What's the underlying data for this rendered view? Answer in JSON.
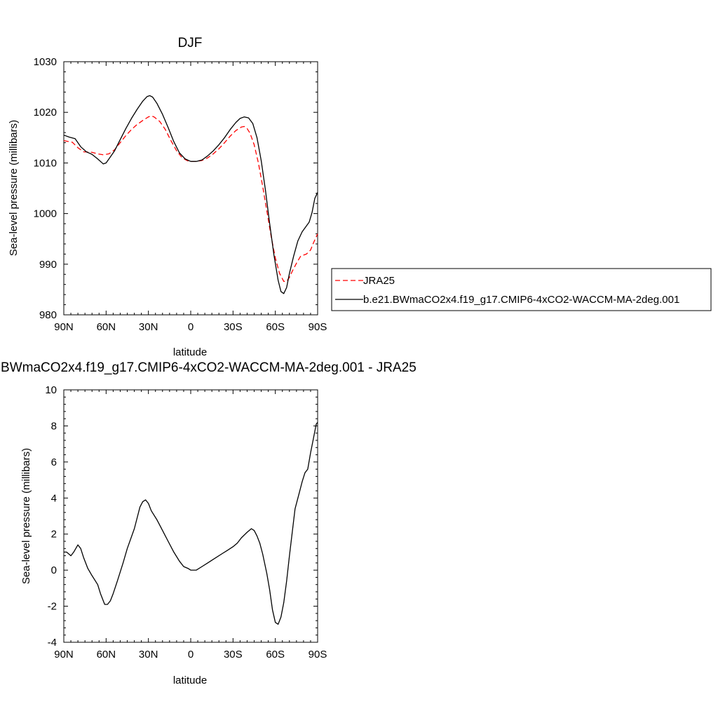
{
  "colors": {
    "model": "#000000",
    "obs": "#ff0000"
  },
  "chart_data": [
    {
      "type": "line",
      "title": "DJF",
      "xlabel": "latitude",
      "ylabel": "Sea-level pressure (millibars)",
      "xlim": [
        90,
        -90
      ],
      "ylim": [
        980,
        1030
      ],
      "xticks": [
        90,
        60,
        30,
        0,
        -30,
        -60,
        -90
      ],
      "xtick_labels": [
        "90N",
        "60N",
        "30N",
        "0",
        "30S",
        "60S",
        "90S"
      ],
      "yticks": [
        980,
        990,
        1000,
        1010,
        1020,
        1030
      ],
      "ytick_labels": [
        "980",
        "990",
        "1000",
        "1010",
        "1020",
        "1030"
      ],
      "legend": {
        "placement": "right"
      },
      "series": [
        {
          "name": "JRA25",
          "style": "dashed",
          "color": "#ff0000",
          "points": [
            [
              90,
              1014.4
            ],
            [
              86,
              1014.2
            ],
            [
              84,
              1014.1
            ],
            [
              80,
              1013.0
            ],
            [
              76,
              1012.2
            ],
            [
              70,
              1012.1
            ],
            [
              66,
              1011.8
            ],
            [
              62,
              1011.6
            ],
            [
              58,
              1011.8
            ],
            [
              54,
              1012.6
            ],
            [
              50,
              1014.0
            ],
            [
              46,
              1015.4
            ],
            [
              42,
              1016.6
            ],
            [
              38,
              1017.6
            ],
            [
              34,
              1018.4
            ],
            [
              30,
              1019.1
            ],
            [
              28,
              1019.3
            ],
            [
              26,
              1019.1
            ],
            [
              22,
              1018.2
            ],
            [
              18,
              1016.6
            ],
            [
              14,
              1014.4
            ],
            [
              10,
              1012.4
            ],
            [
              6,
              1011.0
            ],
            [
              2,
              1010.4
            ],
            [
              0,
              1010.3
            ],
            [
              -4,
              1010.3
            ],
            [
              -8,
              1010.5
            ],
            [
              -12,
              1011.0
            ],
            [
              -16,
              1011.8
            ],
            [
              -20,
              1012.8
            ],
            [
              -24,
              1014.0
            ],
            [
              -28,
              1015.3
            ],
            [
              -32,
              1016.4
            ],
            [
              -36,
              1017.1
            ],
            [
              -38,
              1017.2
            ],
            [
              -40,
              1016.8
            ],
            [
              -42,
              1015.9
            ],
            [
              -45,
              1013.6
            ],
            [
              -48,
              1010.0
            ],
            [
              -51,
              1005.4
            ],
            [
              -54,
              1000.5
            ],
            [
              -57,
              995.6
            ],
            [
              -60,
              991.2
            ],
            [
              -63,
              988.2
            ],
            [
              -66,
              986.6
            ],
            [
              -68,
              986.6
            ],
            [
              -70,
              987.4
            ],
            [
              -72,
              988.6
            ],
            [
              -75,
              990.2
            ],
            [
              -78,
              991.6
            ],
            [
              -82,
              992.0
            ],
            [
              -85,
              992.8
            ],
            [
              -87,
              994.2
            ],
            [
              -90,
              996.0
            ]
          ]
        },
        {
          "name": "b.e21.BWmaCO2x4.f19_g17.CMIP6-4xCO2-WACCM-MA-2deg.001",
          "style": "solid",
          "color": "#000000",
          "points": [
            [
              90,
              1015.5
            ],
            [
              86,
              1015.1
            ],
            [
              82,
              1014.8
            ],
            [
              78,
              1013.2
            ],
            [
              74,
              1012.2
            ],
            [
              70,
              1011.7
            ],
            [
              66,
              1010.8
            ],
            [
              62,
              1009.8
            ],
            [
              60,
              1010.0
            ],
            [
              58,
              1010.8
            ],
            [
              54,
              1012.4
            ],
            [
              50,
              1014.6
            ],
            [
              46,
              1016.8
            ],
            [
              42,
              1018.8
            ],
            [
              38,
              1020.6
            ],
            [
              34,
              1022.2
            ],
            [
              31,
              1023.1
            ],
            [
              29,
              1023.3
            ],
            [
              27,
              1023.0
            ],
            [
              24,
              1021.8
            ],
            [
              20,
              1019.6
            ],
            [
              16,
              1017.0
            ],
            [
              12,
              1014.2
            ],
            [
              8,
              1012.0
            ],
            [
              4,
              1010.8
            ],
            [
              0,
              1010.3
            ],
            [
              -4,
              1010.3
            ],
            [
              -8,
              1010.6
            ],
            [
              -12,
              1011.4
            ],
            [
              -16,
              1012.4
            ],
            [
              -20,
              1013.6
            ],
            [
              -24,
              1015.0
            ],
            [
              -28,
              1016.6
            ],
            [
              -32,
              1018.0
            ],
            [
              -35,
              1018.8
            ],
            [
              -38,
              1019.1
            ],
            [
              -41,
              1018.9
            ],
            [
              -44,
              1017.8
            ],
            [
              -47,
              1015.0
            ],
            [
              -50,
              1010.4
            ],
            [
              -53,
              1004.6
            ],
            [
              -56,
              998.0
            ],
            [
              -59,
              991.8
            ],
            [
              -62,
              986.8
            ],
            [
              -64,
              984.6
            ],
            [
              -66,
              984.2
            ],
            [
              -68,
              985.4
            ],
            [
              -70,
              988.2
            ],
            [
              -73,
              991.6
            ],
            [
              -76,
              994.6
            ],
            [
              -79,
              996.4
            ],
            [
              -84,
              998.3
            ],
            [
              -86,
              1000.2
            ],
            [
              -88,
              1003.0
            ],
            [
              -90,
              1004.2
            ]
          ]
        }
      ]
    },
    {
      "type": "line",
      "title": "b.e21.BWmaCO2x4.f19_g17.CMIP6-4xCO2-WACCM-MA-2deg.001 - JRA25",
      "xlabel": "latitude",
      "ylabel": "Sea-level pressure (millibars)",
      "xlim": [
        90,
        -90
      ],
      "ylim": [
        -4,
        10
      ],
      "xticks": [
        90,
        60,
        30,
        0,
        -30,
        -60,
        -90
      ],
      "xtick_labels": [
        "90N",
        "60N",
        "30N",
        "0",
        "30S",
        "60S",
        "90S"
      ],
      "yticks": [
        -4,
        -2,
        0,
        2,
        4,
        6,
        8,
        10
      ],
      "ytick_labels": [
        "-4",
        "-2",
        "0",
        "2",
        "4",
        "6",
        "8",
        "10"
      ],
      "series": [
        {
          "style": "solid",
          "color": "#000000",
          "points": [
            [
              90,
              1.0
            ],
            [
              88,
              1.0
            ],
            [
              85,
              0.8
            ],
            [
              83,
              1.0
            ],
            [
              80,
              1.4
            ],
            [
              78,
              1.2
            ],
            [
              76,
              0.7
            ],
            [
              73,
              0.1
            ],
            [
              70,
              -0.3
            ],
            [
              66,
              -0.8
            ],
            [
              64,
              -1.3
            ],
            [
              61,
              -1.9
            ],
            [
              59,
              -1.9
            ],
            [
              57,
              -1.7
            ],
            [
              55,
              -1.3
            ],
            [
              52,
              -0.6
            ],
            [
              48,
              0.4
            ],
            [
              45,
              1.2
            ],
            [
              40,
              2.3
            ],
            [
              36,
              3.5
            ],
            [
              34,
              3.8
            ],
            [
              32,
              3.9
            ],
            [
              30,
              3.7
            ],
            [
              28,
              3.3
            ],
            [
              24,
              2.8
            ],
            [
              20,
              2.2
            ],
            [
              16,
              1.6
            ],
            [
              12,
              1.0
            ],
            [
              8,
              0.5
            ],
            [
              5,
              0.2
            ],
            [
              2,
              0.1
            ],
            [
              0,
              0.0
            ],
            [
              -2,
              0.0
            ],
            [
              -4,
              0.0
            ],
            [
              -8,
              0.2
            ],
            [
              -12,
              0.4
            ],
            [
              -16,
              0.6
            ],
            [
              -22,
              0.9
            ],
            [
              -26,
              1.1
            ],
            [
              -30,
              1.3
            ],
            [
              -33,
              1.5
            ],
            [
              -36,
              1.8
            ],
            [
              -40,
              2.1
            ],
            [
              -43,
              2.3
            ],
            [
              -45,
              2.2
            ],
            [
              -47,
              1.9
            ],
            [
              -49,
              1.5
            ],
            [
              -51,
              0.9
            ],
            [
              -54,
              -0.2
            ],
            [
              -56,
              -1.1
            ],
            [
              -58,
              -2.2
            ],
            [
              -60,
              -2.9
            ],
            [
              -62,
              -3.0
            ],
            [
              -64,
              -2.6
            ],
            [
              -66,
              -1.8
            ],
            [
              -68,
              -0.6
            ],
            [
              -70,
              0.8
            ],
            [
              -72,
              2.1
            ],
            [
              -74,
              3.4
            ],
            [
              -77,
              4.3
            ],
            [
              -79,
              4.9
            ],
            [
              -81,
              5.4
            ],
            [
              -83,
              5.6
            ],
            [
              -85,
              6.5
            ],
            [
              -87,
              7.3
            ],
            [
              -89,
              8.1
            ],
            [
              -90,
              8.2
            ]
          ]
        }
      ]
    }
  ]
}
